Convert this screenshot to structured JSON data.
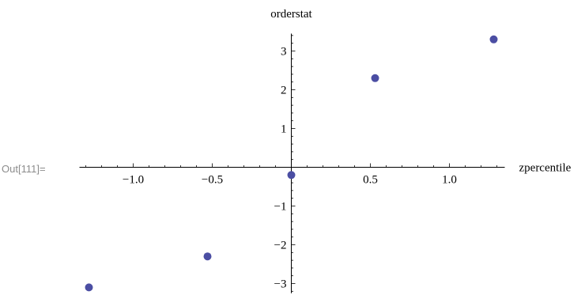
{
  "cell": {
    "out_label": "Out[111]="
  },
  "chart_data": {
    "type": "scatter",
    "xlabel": "zpercentile",
    "ylabel": "orderstat",
    "xlim": [
      -1.35,
      1.35
    ],
    "ylim": [
      -3.25,
      3.45
    ],
    "x_ticks": [
      -1.0,
      -0.5,
      0.5,
      1.0
    ],
    "x_tick_labels": [
      "−1.0",
      "−0.5",
      "0.5",
      "1.0"
    ],
    "y_ticks": [
      -3,
      -2,
      -1,
      1,
      2,
      3
    ],
    "y_tick_labels": [
      "−3",
      "−2",
      "−1",
      "1",
      "2",
      "3"
    ],
    "point_color": "#4b4ea3",
    "points": [
      {
        "x": -1.28,
        "y": -3.1
      },
      {
        "x": -0.53,
        "y": -2.3
      },
      {
        "x": 0.0,
        "y": -0.2
      },
      {
        "x": 0.53,
        "y": 2.3
      },
      {
        "x": 1.28,
        "y": 3.3
      }
    ]
  }
}
